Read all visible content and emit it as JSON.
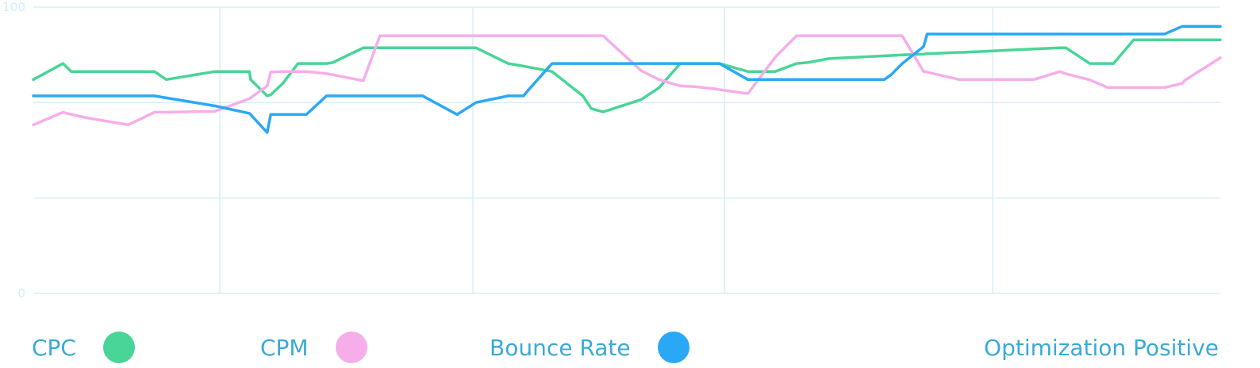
{
  "chart_data": {
    "type": "line",
    "ylim": [
      0,
      100
    ],
    "y_tick_labels": [
      "0",
      "100"
    ],
    "grid": true,
    "legend_placement": "bottom",
    "x": [
      0.0,
      2.5,
      3.2,
      4.7,
      8.0,
      10.2,
      11.2,
      15.3,
      18.2,
      18.3,
      19.7,
      20.0,
      21.0,
      22.3,
      23.0,
      24.7,
      25.2,
      27.8,
      29.2,
      31.5,
      32.2,
      32.8,
      35.7,
      37.3,
      40.0,
      40.7,
      41.3,
      41.8,
      43.7,
      46.3,
      47.0,
      48.0,
      51.2,
      52.7,
      54.5,
      55.8,
      57.3,
      57.8,
      60.2,
      62.5,
      64.3,
      65.3,
      67.0,
      67.8,
      69.3,
      71.7,
      72.3,
      73.2,
      75.0,
      75.3,
      78.0,
      78.3,
      80.3,
      84.3,
      86.5,
      87.0,
      89.0,
      90.5,
      91.0,
      92.7,
      93.0,
      95.3,
      96.8,
      97.0,
      100.0
    ],
    "series": [
      {
        "name": "CPC",
        "color": "#48d597",
        "values": [
          74.7,
          80.3,
          77.5,
          77.5,
          77.5,
          77.5,
          74.7,
          77.5,
          77.5,
          74.7,
          69.0,
          69.4,
          73.3,
          80.3,
          80.3,
          80.3,
          80.6,
          85.8,
          85.8,
          85.8,
          85.8,
          85.8,
          85.8,
          85.8,
          80.3,
          79.8,
          79.4,
          79.0,
          77.5,
          69.0,
          64.6,
          63.4,
          67.7,
          71.8,
          80.3,
          80.3,
          80.3,
          80.3,
          77.5,
          77.5,
          80.3,
          80.7,
          82.0,
          82.2,
          82.5,
          83.0,
          83.1,
          83.3,
          83.6,
          83.7,
          84.2,
          84.2,
          84.6,
          85.4,
          85.8,
          85.8,
          80.3,
          80.3,
          80.3,
          88.6,
          88.6,
          88.6,
          88.6,
          88.6,
          88.6
        ]
      },
      {
        "name": "CPM",
        "color": "#f5aeea",
        "values": [
          58.9,
          63.3,
          62.5,
          61.2,
          58.9,
          63.3,
          63.3,
          63.6,
          68.0,
          68.3,
          72.5,
          77.3,
          77.5,
          77.5,
          77.5,
          76.8,
          76.4,
          74.3,
          90.0,
          90.0,
          90.0,
          90.0,
          90.0,
          90.0,
          90.0,
          90.0,
          90.0,
          90.0,
          90.0,
          90.0,
          90.0,
          90.0,
          77.8,
          74.7,
          72.5,
          72.2,
          71.5,
          71.2,
          69.8,
          82.5,
          90.0,
          90.0,
          90.0,
          90.0,
          90.0,
          90.0,
          90.0,
          90.0,
          77.5,
          77.3,
          74.7,
          74.7,
          74.7,
          74.7,
          77.5,
          76.7,
          74.6,
          71.9,
          71.9,
          71.9,
          71.9,
          71.9,
          73.4,
          74.4,
          82.3
        ]
      },
      {
        "name": "Bounce Rate",
        "color": "#2ba8f5",
        "values": [
          69.0,
          69.0,
          69.0,
          69.0,
          69.0,
          69.0,
          68.3,
          65.5,
          62.9,
          62.5,
          56.2,
          62.5,
          62.5,
          62.5,
          62.5,
          69.0,
          69.0,
          69.0,
          69.0,
          69.0,
          69.0,
          69.0,
          62.5,
          66.7,
          69.0,
          69.0,
          69.0,
          71.5,
          80.3,
          80.3,
          80.3,
          80.3,
          80.3,
          80.3,
          80.3,
          80.3,
          80.3,
          80.3,
          74.7,
          74.7,
          74.7,
          74.7,
          74.7,
          74.7,
          74.7,
          74.7,
          76.5,
          80.3,
          86.2,
          90.6,
          90.6,
          90.6,
          90.6,
          90.6,
          90.6,
          90.6,
          90.6,
          90.6,
          90.6,
          90.6,
          90.6,
          90.6,
          93.3,
          93.3,
          93.3
        ]
      }
    ]
  },
  "legend": {
    "items": [
      {
        "label": "CPC",
        "color": "#48d597"
      },
      {
        "label": "CPM",
        "color": "#f5aeea"
      },
      {
        "label": "Bounce Rate",
        "color": "#2ba8f5"
      }
    ],
    "right_text": "Optimization Positive"
  },
  "colors": {
    "grid": "#d9eef8",
    "tick_text": "#d2edf7",
    "legend_text": "#3aaad6"
  }
}
